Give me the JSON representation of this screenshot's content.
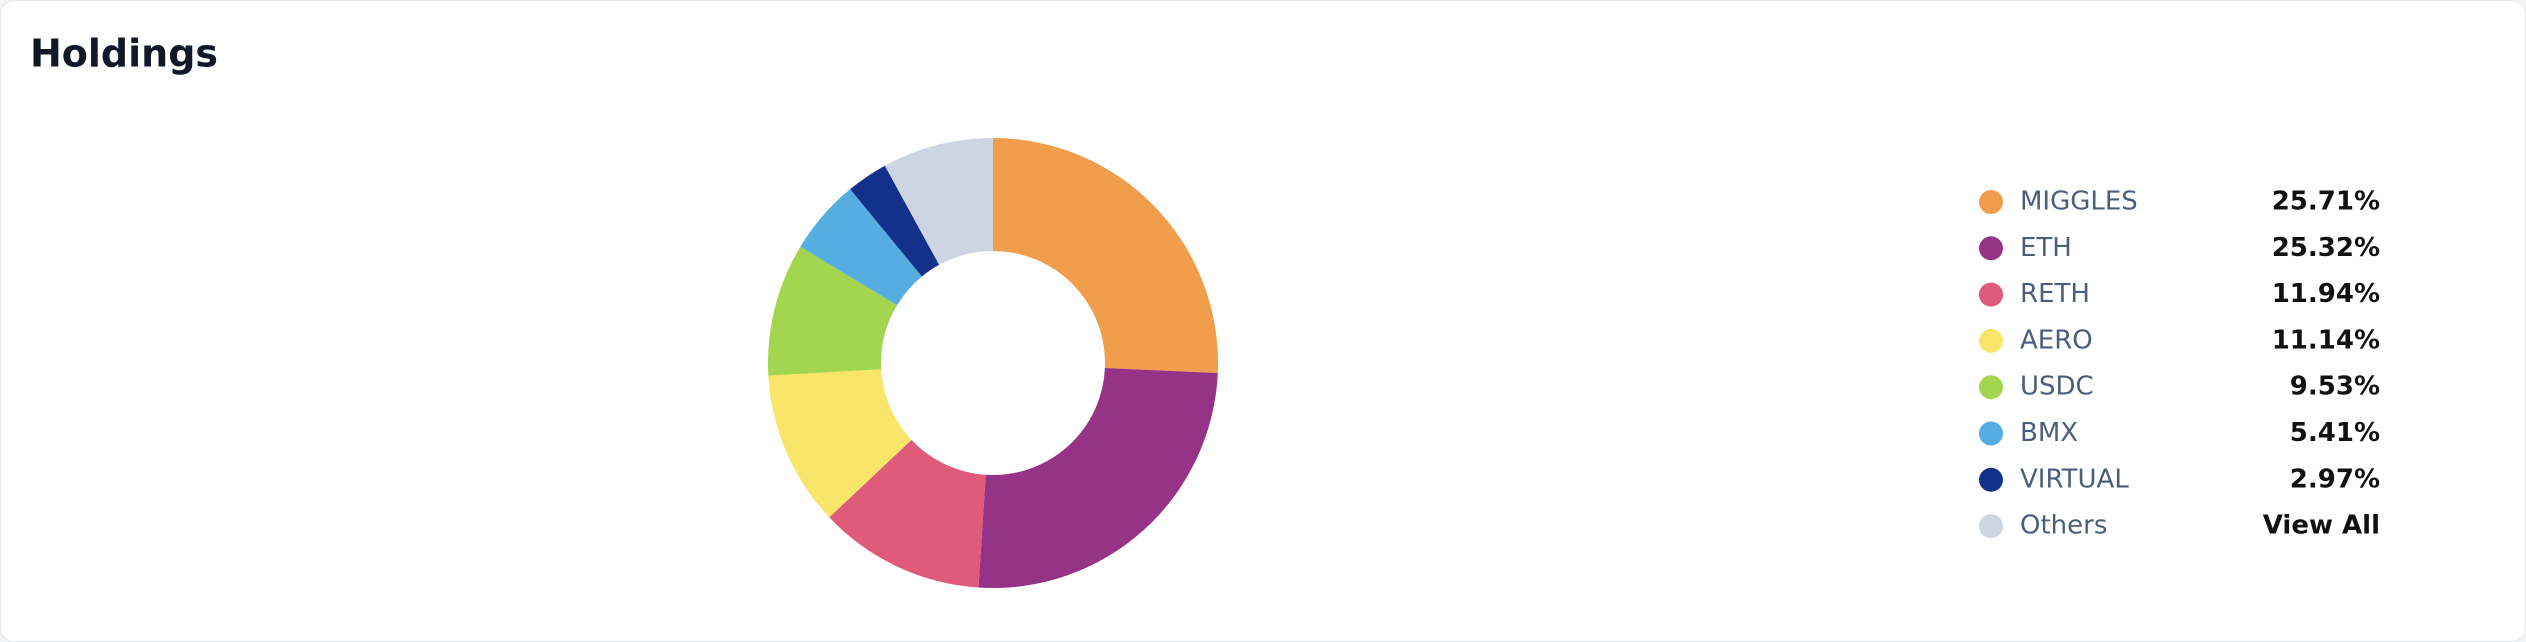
{
  "chart_data": {
    "type": "donut",
    "title": "Holdings",
    "categories": [
      "MIGGLES",
      "ETH",
      "RETH",
      "AERO",
      "USDC",
      "BMX",
      "VIRTUAL",
      "Others"
    ],
    "values": [
      25.71,
      25.32,
      11.94,
      11.14,
      9.53,
      5.41,
      2.97,
      7.98
    ],
    "value_labels": [
      "25.71%",
      "25.32%",
      "11.94%",
      "11.14%",
      "9.53%",
      "5.41%",
      "2.97%",
      null
    ],
    "colors": [
      "#f09d4c",
      "#973387",
      "#e05a7a",
      "#fae56b",
      "#a3d54f",
      "#56ade1",
      "#13318b",
      "#cdd5e2"
    ],
    "view_all": "View All"
  }
}
